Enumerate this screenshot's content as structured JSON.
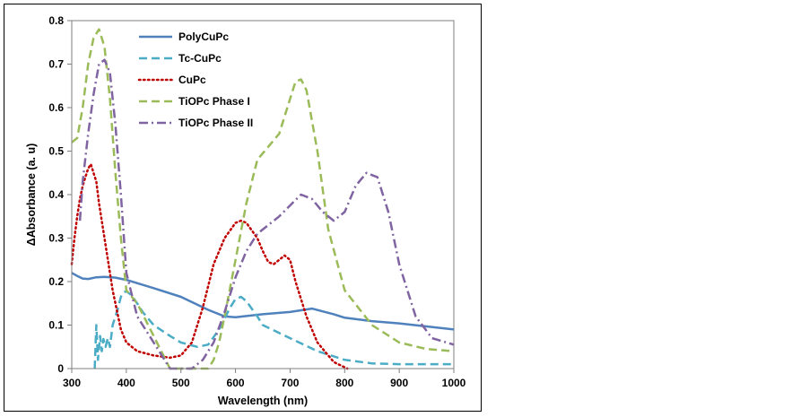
{
  "chart_data": {
    "type": "line",
    "title": "",
    "xlabel": "Wavelength (nm)",
    "ylabel": "ΔAbsorbance (a. u)",
    "xlim": [
      300,
      1000
    ],
    "ylim": [
      0,
      0.8
    ],
    "x_ticks": [
      "300",
      "400",
      "500",
      "600",
      "700",
      "800",
      "900",
      "1000"
    ],
    "y_ticks": [
      "0",
      "0.1",
      "0.2",
      "0.3",
      "0.4",
      "0.5",
      "0.6",
      "0.7",
      "0.8"
    ],
    "grid": false,
    "legend_position": "top-left",
    "series": [
      {
        "name": "PolyCuPc",
        "color": "#4f81bd",
        "style": "solid",
        "x": [
          300,
          310,
          320,
          330,
          345,
          360,
          380,
          400,
          450,
          500,
          550,
          580,
          600,
          650,
          700,
          740,
          780,
          800,
          850,
          900,
          950,
          1000
        ],
        "y": [
          0.22,
          0.213,
          0.207,
          0.206,
          0.21,
          0.211,
          0.209,
          0.204,
          0.185,
          0.165,
          0.135,
          0.12,
          0.118,
          0.125,
          0.13,
          0.138,
          0.125,
          0.117,
          0.109,
          0.104,
          0.097,
          0.09
        ]
      },
      {
        "name": "Tc-CuPc",
        "color": "#4bacc6",
        "style": "dashed",
        "x": [
          342,
          345,
          348,
          352,
          355,
          358,
          362,
          366,
          370,
          375,
          380,
          385,
          390,
          395,
          400,
          410,
          420,
          430,
          450,
          480,
          500,
          530,
          550,
          570,
          590,
          600,
          610,
          620,
          640,
          650,
          700,
          750,
          800,
          850,
          900,
          950,
          1000
        ],
        "y": [
          0.0,
          0.1,
          0.02,
          0.075,
          0.04,
          0.068,
          0.05,
          0.07,
          0.05,
          0.1,
          0.12,
          0.14,
          0.165,
          0.175,
          0.178,
          0.168,
          0.15,
          0.13,
          0.1,
          0.075,
          0.06,
          0.05,
          0.055,
          0.09,
          0.14,
          0.16,
          0.165,
          0.155,
          0.12,
          0.1,
          0.07,
          0.04,
          0.02,
          0.012,
          0.01,
          0.01,
          0.01
        ]
      },
      {
        "name": "CuPc",
        "color": "#c00000",
        "style": "dotted",
        "x": [
          300,
          305,
          310,
          315,
          320,
          325,
          330,
          335,
          340,
          345,
          350,
          360,
          375,
          390,
          400,
          420,
          450,
          480,
          500,
          520,
          540,
          560,
          580,
          600,
          610,
          620,
          640,
          650,
          660,
          670,
          680,
          690,
          700,
          710,
          730,
          750,
          780,
          805
        ],
        "y": [
          0.24,
          0.3,
          0.35,
          0.39,
          0.42,
          0.44,
          0.46,
          0.47,
          0.45,
          0.43,
          0.38,
          0.3,
          0.18,
          0.09,
          0.06,
          0.04,
          0.03,
          0.025,
          0.03,
          0.06,
          0.14,
          0.24,
          0.3,
          0.335,
          0.34,
          0.335,
          0.3,
          0.27,
          0.245,
          0.24,
          0.25,
          0.26,
          0.25,
          0.2,
          0.12,
          0.06,
          0.015,
          0.0
        ]
      },
      {
        "name": "TiOPc Phase I",
        "color": "#9bbb59",
        "style": "dashed",
        "x": [
          300,
          310,
          320,
          330,
          340,
          350,
          360,
          370,
          380,
          390,
          400,
          420,
          440,
          460,
          480,
          550,
          560,
          570,
          580,
          600,
          620,
          640,
          660,
          680,
          700,
          710,
          720,
          730,
          750,
          770,
          800,
          850,
          900,
          950,
          1000
        ],
        "y": [
          0.52,
          0.53,
          0.6,
          0.7,
          0.76,
          0.78,
          0.74,
          0.62,
          0.45,
          0.3,
          0.18,
          0.15,
          0.1,
          0.05,
          0.0,
          0.0,
          0.02,
          0.06,
          0.12,
          0.25,
          0.38,
          0.48,
          0.51,
          0.54,
          0.62,
          0.66,
          0.665,
          0.64,
          0.5,
          0.32,
          0.18,
          0.1,
          0.06,
          0.045,
          0.04
        ]
      },
      {
        "name": "TiOPc Phase II",
        "color": "#8064a2",
        "style": "dashdot",
        "x": [
          315,
          320,
          330,
          340,
          350,
          360,
          370,
          380,
          390,
          400,
          420,
          440,
          460,
          480,
          520,
          540,
          560,
          580,
          600,
          620,
          640,
          660,
          680,
          700,
          720,
          740,
          760,
          780,
          800,
          820,
          840,
          860,
          880,
          900,
          930,
          960,
          1000
        ],
        "y": [
          0.34,
          0.43,
          0.54,
          0.63,
          0.7,
          0.71,
          0.68,
          0.56,
          0.4,
          0.22,
          0.12,
          0.08,
          0.04,
          0.0,
          0.0,
          0.02,
          0.06,
          0.13,
          0.21,
          0.27,
          0.31,
          0.33,
          0.35,
          0.375,
          0.4,
          0.39,
          0.36,
          0.34,
          0.36,
          0.42,
          0.45,
          0.44,
          0.36,
          0.24,
          0.12,
          0.07,
          0.055
        ]
      }
    ]
  }
}
